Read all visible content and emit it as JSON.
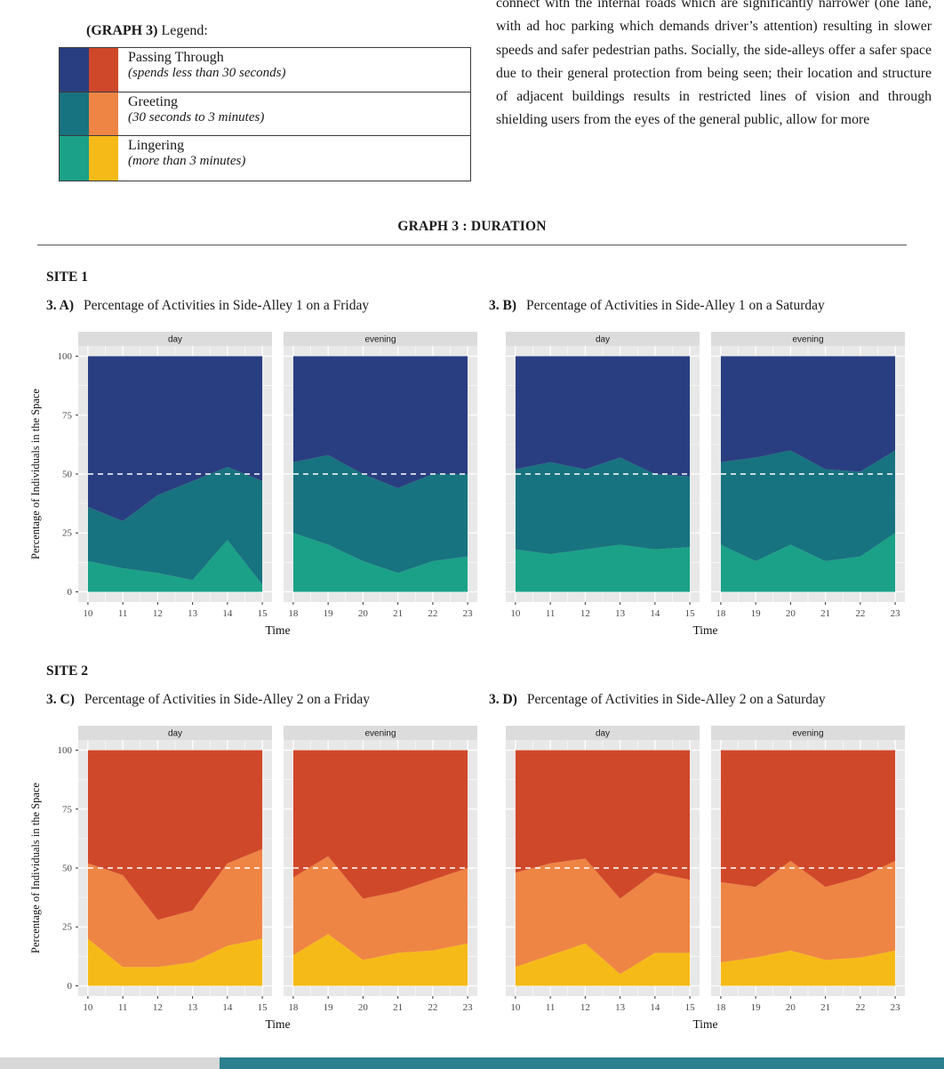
{
  "page": {
    "paragraph": "connect with the internal roads which are significantly narrower (one lane, with ad hoc parking which demands driver’s attention) resulting in slower speeds and safer pedestrian paths. Socially, the side-alleys offer a safer space due to their general protection from being seen; their location and structure of adjacent buildings results in restricted lines of vision and through shielding users from the eyes of the general public, allow for more",
    "section_heading": "GRAPH 3 : DURATION"
  },
  "legend": {
    "title_bold": "(GRAPH 3)",
    "title_rest": " Legend:",
    "rows": [
      {
        "label": "Passing Through",
        "sublabel": "(spends less than 30 seconds)",
        "colors": [
          "#293e80",
          "#d0482a"
        ]
      },
      {
        "label": "Greeting",
        "sublabel": "(30 seconds to 3 minutes)",
        "colors": [
          "#17737f",
          "#ee8544"
        ]
      },
      {
        "label": "Lingering",
        "sublabel": "(more than 3 minutes)",
        "colors": [
          "#1ba187",
          "#f6ba18"
        ]
      }
    ]
  },
  "sites": [
    {
      "heading": "SITE 1",
      "charts": [
        {
          "prefix": "3. A)",
          "title": "Percentage of Activities in Side-Alley 1 on a Friday"
        },
        {
          "prefix": "3. B)",
          "title": "Percentage of Activities in Side-Alley 1 on a Saturday"
        }
      ]
    },
    {
      "heading": "SITE 2",
      "charts": [
        {
          "prefix": "3. C)",
          "title": "Percentage of Activities in Side-Alley 2 on a Friday"
        },
        {
          "prefix": "3. D)",
          "title": "Percentage of Activities in Side-Alley 2 on a Saturday"
        }
      ]
    }
  ],
  "footer": {
    "gray_color": "#d8d8d8",
    "teal_color": "#2b7f8e"
  },
  "chart_data": [
    {
      "id": "3A",
      "type": "area",
      "title": "Percentage of Activities in Side-Alley 1 on a Friday",
      "show_y_axis": true,
      "ylabel": "Percentage of Individuals in the Space",
      "xlabel": "Time",
      "ylim": [
        0,
        100
      ],
      "yticks": [
        0,
        25,
        50,
        75,
        100
      ],
      "ref_line": 50,
      "palette": [
        "#1ba187",
        "#17737f",
        "#293e80"
      ],
      "series_names": [
        "Lingering",
        "Greeting",
        "Passing Through"
      ],
      "facets": [
        {
          "label": "day",
          "x": [
            10,
            11,
            12,
            13,
            14,
            15
          ],
          "series": [
            {
              "name": "Lingering",
              "values": [
                13,
                10,
                8,
                5,
                22,
                3
              ]
            },
            {
              "name": "Greeting",
              "values": [
                23,
                20,
                33,
                42,
                31,
                44
              ]
            },
            {
              "name": "Passing Through",
              "values": [
                64,
                70,
                59,
                53,
                47,
                53
              ]
            }
          ]
        },
        {
          "label": "evening",
          "x": [
            18,
            19,
            20,
            21,
            22,
            23
          ],
          "series": [
            {
              "name": "Lingering",
              "values": [
                25,
                20,
                13,
                8,
                13,
                15
              ]
            },
            {
              "name": "Greeting",
              "values": [
                30,
                38,
                37,
                36,
                37,
                35
              ]
            },
            {
              "name": "Passing Through",
              "values": [
                45,
                42,
                50,
                56,
                50,
                50
              ]
            }
          ]
        }
      ]
    },
    {
      "id": "3B",
      "type": "area",
      "title": "Percentage of Activities in Side-Alley 1 on a Saturday",
      "show_y_axis": false,
      "ylabel": "Percentage of Individuals in the Space",
      "xlabel": "Time",
      "ylim": [
        0,
        100
      ],
      "yticks": [
        0,
        25,
        50,
        75,
        100
      ],
      "ref_line": 50,
      "palette": [
        "#1ba187",
        "#17737f",
        "#293e80"
      ],
      "series_names": [
        "Lingering",
        "Greeting",
        "Passing Through"
      ],
      "facets": [
        {
          "label": "day",
          "x": [
            10,
            11,
            12,
            13,
            14,
            15
          ],
          "series": [
            {
              "name": "Lingering",
              "values": [
                18,
                16,
                18,
                20,
                18,
                19
              ]
            },
            {
              "name": "Greeting",
              "values": [
                34,
                39,
                34,
                37,
                32,
                30
              ]
            },
            {
              "name": "Passing Through",
              "values": [
                48,
                45,
                48,
                43,
                50,
                51
              ]
            }
          ]
        },
        {
          "label": "evening",
          "x": [
            18,
            19,
            20,
            21,
            22,
            23
          ],
          "series": [
            {
              "name": "Lingering",
              "values": [
                20,
                13,
                20,
                13,
                15,
                25
              ]
            },
            {
              "name": "Greeting",
              "values": [
                35,
                44,
                40,
                39,
                36,
                35
              ]
            },
            {
              "name": "Passing Through",
              "values": [
                45,
                43,
                40,
                48,
                49,
                40
              ]
            }
          ]
        }
      ]
    },
    {
      "id": "3C",
      "type": "area",
      "title": "Percentage of Activities in Side-Alley 2 on a Friday",
      "show_y_axis": true,
      "ylabel": "Percentage of Individuals in the Space",
      "xlabel": "Time",
      "ylim": [
        0,
        100
      ],
      "yticks": [
        0,
        25,
        50,
        75,
        100
      ],
      "ref_line": 50,
      "palette": [
        "#f6ba18",
        "#ee8544",
        "#d0482a"
      ],
      "series_names": [
        "Lingering",
        "Greeting",
        "Passing Through"
      ],
      "facets": [
        {
          "label": "day",
          "x": [
            10,
            11,
            12,
            13,
            14,
            15
          ],
          "series": [
            {
              "name": "Lingering",
              "values": [
                20,
                8,
                8,
                10,
                17,
                20
              ]
            },
            {
              "name": "Greeting",
              "values": [
                32,
                39,
                20,
                22,
                35,
                38
              ]
            },
            {
              "name": "Passing Through",
              "values": [
                48,
                53,
                72,
                68,
                48,
                42
              ]
            }
          ]
        },
        {
          "label": "evening",
          "x": [
            18,
            19,
            20,
            21,
            22,
            23
          ],
          "series": [
            {
              "name": "Lingering",
              "values": [
                13,
                22,
                11,
                14,
                15,
                18
              ]
            },
            {
              "name": "Greeting",
              "values": [
                33,
                33,
                26,
                26,
                30,
                32
              ]
            },
            {
              "name": "Passing Through",
              "values": [
                54,
                45,
                63,
                60,
                55,
                50
              ]
            }
          ]
        }
      ]
    },
    {
      "id": "3D",
      "type": "area",
      "title": "Percentage of Activities in Side-Alley 2 on a Saturday",
      "show_y_axis": false,
      "ylabel": "Percentage of Individuals in the Space",
      "xlabel": "Time",
      "ylim": [
        0,
        100
      ],
      "yticks": [
        0,
        25,
        50,
        75,
        100
      ],
      "ref_line": 50,
      "palette": [
        "#f6ba18",
        "#ee8544",
        "#d0482a"
      ],
      "series_names": [
        "Lingering",
        "Greeting",
        "Passing Through"
      ],
      "facets": [
        {
          "label": "day",
          "x": [
            10,
            11,
            12,
            13,
            14,
            15
          ],
          "series": [
            {
              "name": "Lingering",
              "values": [
                8,
                13,
                18,
                5,
                14,
                14
              ]
            },
            {
              "name": "Greeting",
              "values": [
                40,
                39,
                36,
                32,
                34,
                31
              ]
            },
            {
              "name": "Passing Through",
              "values": [
                52,
                48,
                46,
                63,
                52,
                55
              ]
            }
          ]
        },
        {
          "label": "evening",
          "x": [
            18,
            19,
            20,
            21,
            22,
            23
          ],
          "series": [
            {
              "name": "Lingering",
              "values": [
                10,
                12,
                15,
                11,
                12,
                15
              ]
            },
            {
              "name": "Greeting",
              "values": [
                34,
                30,
                38,
                31,
                34,
                38
              ]
            },
            {
              "name": "Passing Through",
              "values": [
                56,
                58,
                47,
                58,
                54,
                47
              ]
            }
          ]
        }
      ]
    }
  ]
}
